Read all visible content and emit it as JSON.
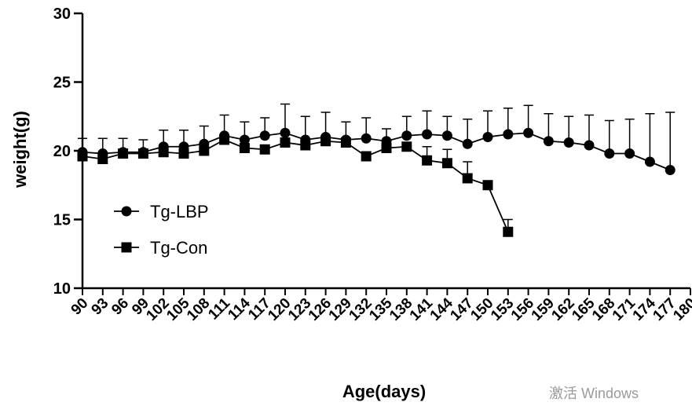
{
  "chart_data": {
    "type": "line",
    "title": "",
    "xlabel": "Age(days)",
    "ylabel": "weight(g)",
    "ylim": [
      10,
      30
    ],
    "yticks": [
      10,
      15,
      20,
      25,
      30
    ],
    "xticks": [
      90,
      93,
      96,
      99,
      102,
      105,
      108,
      111,
      114,
      117,
      120,
      123,
      126,
      129,
      132,
      135,
      138,
      141,
      144,
      147,
      150,
      153,
      156,
      159,
      162,
      165,
      168,
      171,
      174,
      177,
      180
    ],
    "legend_position": "left",
    "grid": false,
    "series": [
      {
        "name": "Tg-LBP",
        "marker": "circle",
        "x": [
          90,
          93,
          96,
          99,
          102,
          105,
          108,
          111,
          114,
          117,
          120,
          123,
          126,
          129,
          132,
          135,
          138,
          141,
          144,
          147,
          150,
          153,
          156,
          159,
          162,
          165,
          168,
          171,
          174,
          177
        ],
        "values": [
          19.9,
          19.8,
          19.9,
          19.9,
          20.3,
          20.3,
          20.5,
          21.1,
          20.8,
          21.1,
          21.3,
          20.8,
          21.0,
          20.8,
          20.9,
          20.7,
          21.1,
          21.2,
          21.1,
          20.5,
          21.0,
          21.2,
          21.3,
          20.7,
          20.6,
          20.4,
          19.8,
          19.8,
          19.2,
          18.6
        ],
        "error": [
          1.0,
          1.1,
          1.0,
          0.9,
          1.2,
          1.2,
          1.3,
          1.5,
          1.3,
          1.3,
          2.1,
          1.7,
          1.8,
          1.3,
          1.5,
          0.9,
          1.4,
          1.7,
          1.4,
          1.8,
          1.9,
          1.9,
          2.0,
          2.0,
          1.9,
          2.2,
          2.4,
          2.5,
          3.5,
          4.2
        ]
      },
      {
        "name": "Tg-Con",
        "marker": "square",
        "x": [
          90,
          93,
          96,
          99,
          102,
          105,
          108,
          111,
          114,
          117,
          120,
          123,
          126,
          129,
          132,
          135,
          138,
          141,
          144,
          147,
          150,
          153
        ],
        "values": [
          19.6,
          19.4,
          19.8,
          19.8,
          19.9,
          19.8,
          20.0,
          20.8,
          20.2,
          20.1,
          20.6,
          20.4,
          20.7,
          20.6,
          19.6,
          20.2,
          20.3,
          19.3,
          19.1,
          18.0,
          17.5,
          14.1
        ],
        "error": [
          0.3,
          0.3,
          0.3,
          0.3,
          0.3,
          0.3,
          0.3,
          0.3,
          0.3,
          0.3,
          0.3,
          0.3,
          0.3,
          0.3,
          0.3,
          0.3,
          0.3,
          1.0,
          1.0,
          1.2,
          0.3,
          0.9
        ]
      }
    ]
  },
  "watermark": "激活 Windows"
}
